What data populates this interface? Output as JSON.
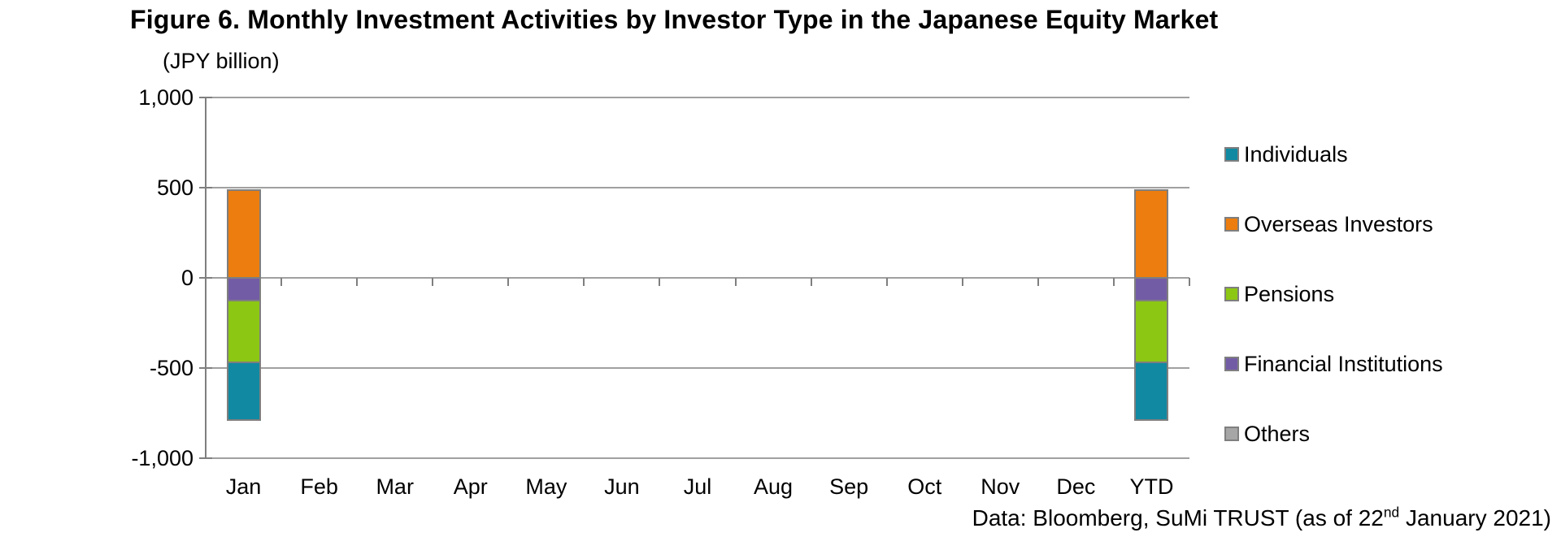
{
  "figure": {
    "title": "Figure 6. Monthly Investment Activities by Investor Type in the Japanese Equity Market",
    "unit_label": "(JPY billion)",
    "source_note": {
      "prefix": "Data: Bloomberg, SuMi TRUST (as of 22",
      "superscript": "nd",
      "suffix": " January 2021)"
    }
  },
  "chart_data": {
    "type": "bar",
    "stacked": true,
    "title": "Figure 6. Monthly Investment Activities by Investor Type in the Japanese Equity Market",
    "ylabel": "(JPY billion)",
    "xlabel": "",
    "ylim": [
      -1000,
      1000
    ],
    "grid": true,
    "legend_position": "right",
    "categories": [
      "Jan",
      "Feb",
      "Mar",
      "Apr",
      "May",
      "Jun",
      "Jul",
      "Aug",
      "Sep",
      "Oct",
      "Nov",
      "Dec",
      "YTD"
    ],
    "yticks": [
      {
        "value": 1000,
        "label": "1,000"
      },
      {
        "value": 500,
        "label": "500"
      },
      {
        "value": 0,
        "label": "0"
      },
      {
        "value": -500,
        "label": "-500"
      },
      {
        "value": -1000,
        "label": "-1,000"
      }
    ],
    "series": [
      {
        "name": "Individuals",
        "color": "#1189A2",
        "values": [
          -325,
          0,
          0,
          0,
          0,
          0,
          0,
          0,
          0,
          0,
          0,
          0,
          -325
        ]
      },
      {
        "name": "Overseas Investors",
        "color": "#EC7D0E",
        "values": [
          490,
          0,
          0,
          0,
          0,
          0,
          0,
          0,
          0,
          0,
          0,
          0,
          490
        ]
      },
      {
        "name": "Pensions",
        "color": "#8CC713",
        "values": [
          -345,
          0,
          0,
          0,
          0,
          0,
          0,
          0,
          0,
          0,
          0,
          0,
          -345
        ]
      },
      {
        "name": "Financial Institutions",
        "color": "#735CA6",
        "values": [
          -125,
          0,
          0,
          0,
          0,
          0,
          0,
          0,
          0,
          0,
          0,
          0,
          -125
        ]
      },
      {
        "name": "Others",
        "color": "#A6A6A6",
        "values": [
          0,
          0,
          0,
          0,
          0,
          0,
          0,
          0,
          0,
          0,
          0,
          0,
          0
        ]
      }
    ],
    "colors": {
      "grid": "#A0A0A0",
      "axis": "#7F7F7F",
      "bar_border": "#7F7F7F"
    }
  }
}
